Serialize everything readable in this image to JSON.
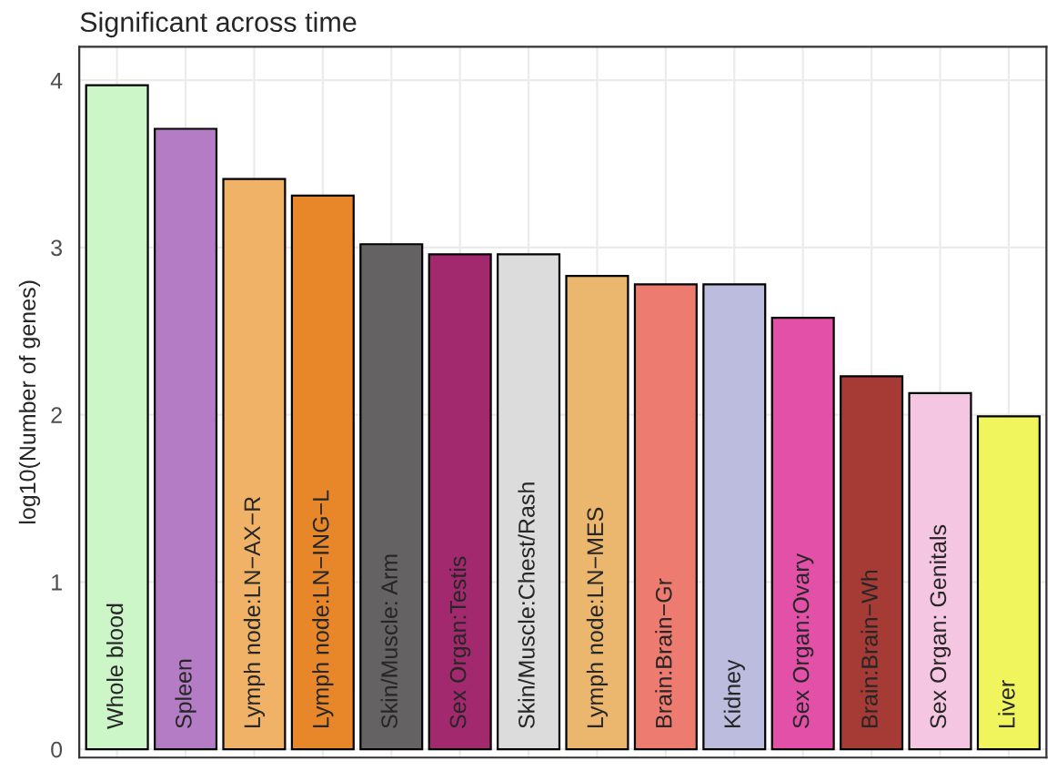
{
  "chart_data": {
    "type": "bar",
    "title": "Significant across time",
    "ylabel": "log10(Number of genes)",
    "categories": [
      "Whole blood",
      "Spleen",
      "Lymph node:LN−AX−R",
      "Lymph node:LN−ING−L",
      "Skin/Muscle: Arm",
      "Sex Organ:Testis",
      "Skin/Muscle:Chest/Rash",
      "Lymph node:LN−MES",
      "Brain:Brain−Gr",
      "Kidney",
      "Sex Organ:Ovary",
      "Brain:Brain−Wh",
      "Sex Organ: Genitals",
      "Liver"
    ],
    "values": [
      3.97,
      3.71,
      3.41,
      3.31,
      3.02,
      2.96,
      2.96,
      2.83,
      2.78,
      2.78,
      2.58,
      2.23,
      2.13,
      1.99
    ],
    "colors": [
      "#ccf5c8",
      "#b57cc6",
      "#efb266",
      "#e8862a",
      "#646262",
      "#a3296e",
      "#dcdcdc",
      "#ebb76e",
      "#ee7b70",
      "#bcbcde",
      "#e250a8",
      "#a63a35",
      "#f4c6e2",
      "#f0f55e"
    ],
    "ylim": [
      -0.05,
      4.2
    ],
    "yticks": [
      0,
      1,
      2,
      3,
      4
    ],
    "grid": true
  }
}
